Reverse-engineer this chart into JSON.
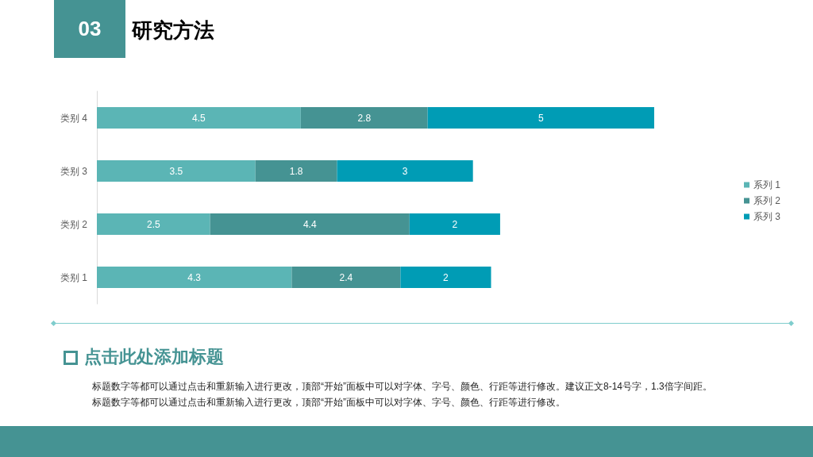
{
  "chart_data": {
    "type": "bar",
    "orientation": "horizontal",
    "stacked": true,
    "title": "研究方法",
    "categories": [
      "类别 4",
      "类别 3",
      "类别 2",
      "类别 1"
    ],
    "series": [
      {
        "name": "系列 1",
        "color": "#5bb5b5",
        "values": [
          4.5,
          3.5,
          2.5,
          4.3
        ]
      },
      {
        "name": "系列 2",
        "color": "#459393",
        "values": [
          2.8,
          1.8,
          4.4,
          2.4
        ]
      },
      {
        "name": "系列 3",
        "color": "#009cb5",
        "values": [
          5,
          3,
          2,
          2
        ]
      }
    ],
    "data_labels": true,
    "legend": "right",
    "tick_labels": "y",
    "annotations": [
      "03",
      "点击此处添加标题",
      "标题数字等都可以通过点击和重新输入进行更改，顶部“开始”面板中可以对字体、字号、颜色、行距等进行修改。建议正文8-14号字，1.3倍字间距。",
      "标题数字等都可以通过点击和重新输入进行更改，顶部“开始”面板中可以对字体、字号、颜色、行距等进行修改。"
    ]
  }
}
